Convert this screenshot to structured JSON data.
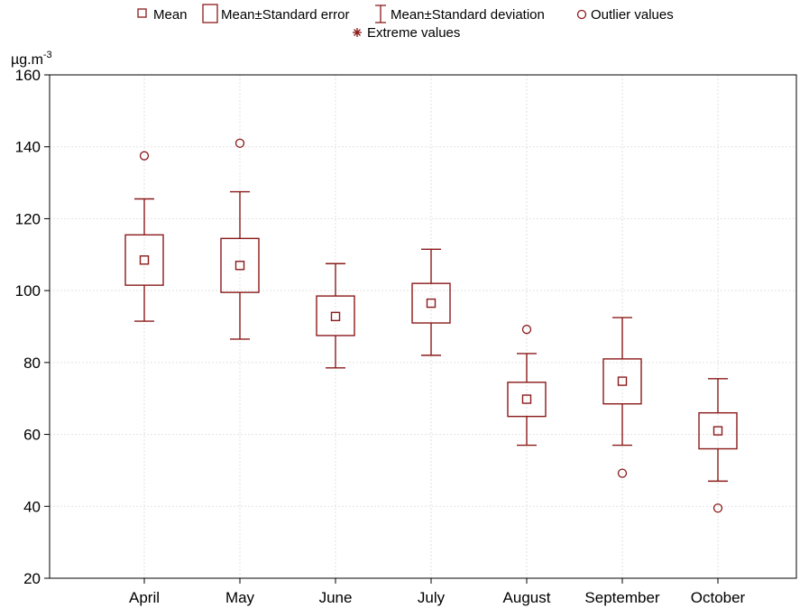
{
  "chart_data": {
    "type": "boxplot",
    "categories": [
      "April",
      "May",
      "June",
      "July",
      "August",
      "September",
      "October"
    ],
    "series": [
      {
        "name": "Mean",
        "values": [
          108.5,
          107.0,
          92.8,
          96.5,
          69.8,
          74.8,
          61.0
        ]
      },
      {
        "name": "Mean±Standard error",
        "low": [
          101.5,
          99.5,
          87.5,
          91.0,
          65.0,
          68.5,
          56.0
        ],
        "high": [
          115.5,
          114.5,
          98.5,
          102.0,
          74.5,
          81.0,
          66.0
        ]
      },
      {
        "name": "Mean±Standard deviation",
        "low": [
          91.5,
          86.5,
          78.5,
          82.0,
          57.0,
          57.0,
          47.0
        ],
        "high": [
          125.5,
          127.5,
          107.5,
          111.5,
          82.5,
          92.5,
          75.5
        ]
      },
      {
        "name": "Outlier values",
        "points": [
          {
            "category": "April",
            "values": [
              137.5
            ]
          },
          {
            "category": "May",
            "values": [
              141.0
            ]
          },
          {
            "category": "August",
            "values": [
              89.2
            ]
          },
          {
            "category": "September",
            "values": [
              49.2
            ]
          },
          {
            "category": "October",
            "values": [
              39.5
            ]
          }
        ]
      },
      {
        "name": "Extreme values",
        "points": []
      }
    ],
    "yunit": "µg.m",
    "yunit_exponent": "-3",
    "ylim": [
      20,
      160
    ],
    "yticks": [
      20,
      40,
      60,
      80,
      100,
      120,
      140,
      160
    ],
    "grid": true,
    "legend_position": "top",
    "color": "#8B1A1A"
  }
}
